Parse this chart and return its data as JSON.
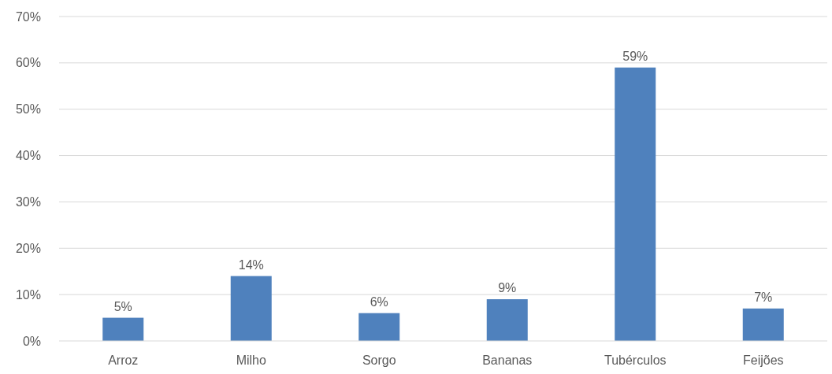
{
  "chart_data": {
    "type": "bar",
    "categories": [
      "Arroz",
      "Milho",
      "Sorgo",
      "Bananas",
      "Tubérculos",
      "Feijões"
    ],
    "values": [
      5,
      14,
      6,
      9,
      59,
      7
    ],
    "value_labels": [
      "5%",
      "14%",
      "6%",
      "9%",
      "59%",
      "7%"
    ],
    "color": "#4f81bd",
    "ylim": [
      0,
      70
    ],
    "yticks": [
      {
        "value": 0,
        "label": "0%"
      },
      {
        "value": 10,
        "label": "10%"
      },
      {
        "value": 20,
        "label": "20%"
      },
      {
        "value": 30,
        "label": "30%"
      },
      {
        "value": 40,
        "label": "40%"
      },
      {
        "value": 50,
        "label": "50%"
      },
      {
        "value": 60,
        "label": "60%"
      },
      {
        "value": 70,
        "label": "70%"
      }
    ],
    "grid": "y"
  }
}
